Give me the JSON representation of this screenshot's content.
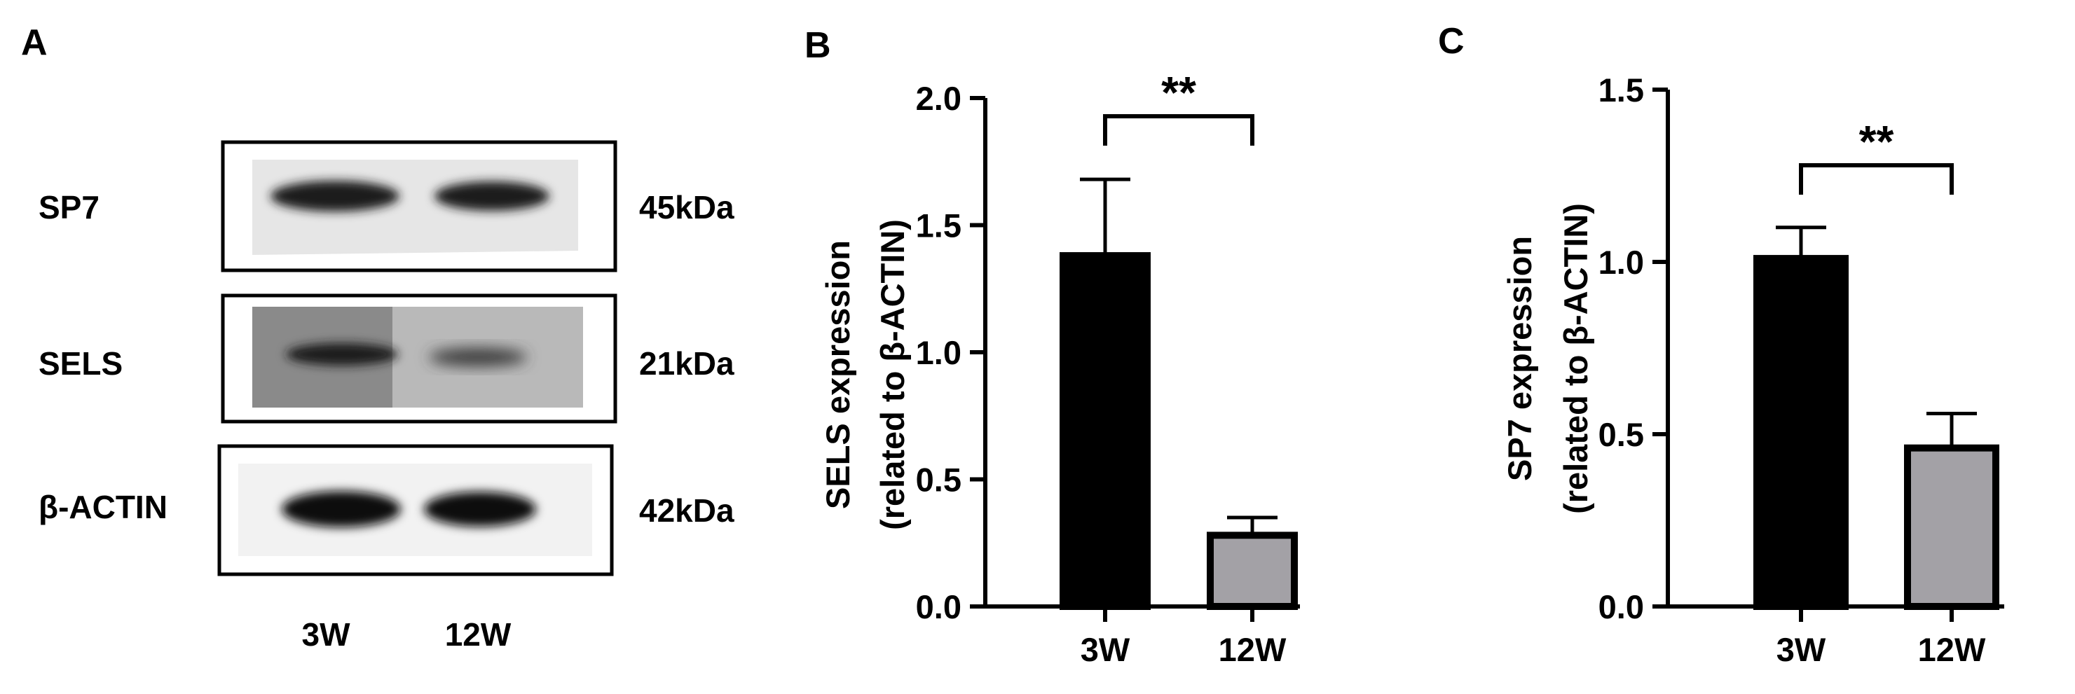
{
  "panel_labels": {
    "a": "A",
    "b": "B",
    "c": "C"
  },
  "colors": {
    "bar_3w": "#000000",
    "bar_12w": "#a3a1a6",
    "axis": "#000000",
    "blot_bg": "#eeeeee",
    "band": "#151515"
  },
  "western_blot": {
    "rows": [
      {
        "label": "SP7",
        "size": "45kDa"
      },
      {
        "label": "SELS",
        "size": "21kDa"
      },
      {
        "label": "β-ACTIN",
        "size": "42kDa"
      }
    ],
    "lanes": [
      "3W",
      "12W"
    ]
  },
  "chart_data": [
    {
      "type": "bar",
      "panel": "B",
      "title": "",
      "categories": [
        "3W",
        "12W"
      ],
      "values": [
        1.38,
        0.28
      ],
      "errors": [
        0.3,
        0.07
      ],
      "ylabel_line1": "SELS expression",
      "ylabel_line2": "(related to β-ACTIN)",
      "xlabel": "",
      "ylim": [
        0,
        2.0
      ],
      "yticks": [
        "0.0",
        "0.5",
        "1.0",
        "1.5",
        "2.0"
      ],
      "significance": "**"
    },
    {
      "type": "bar",
      "panel": "C",
      "title": "",
      "categories": [
        "3W",
        "12W"
      ],
      "values": [
        1.01,
        0.46
      ],
      "errors": [
        0.09,
        0.1
      ],
      "ylabel_line1": "SP7 expression",
      "ylabel_line2": "(related to β-ACTIN)",
      "xlabel": "",
      "ylim": [
        0,
        1.5
      ],
      "yticks": [
        "0.0",
        "0.5",
        "1.0",
        "1.5"
      ],
      "significance": "**"
    }
  ]
}
